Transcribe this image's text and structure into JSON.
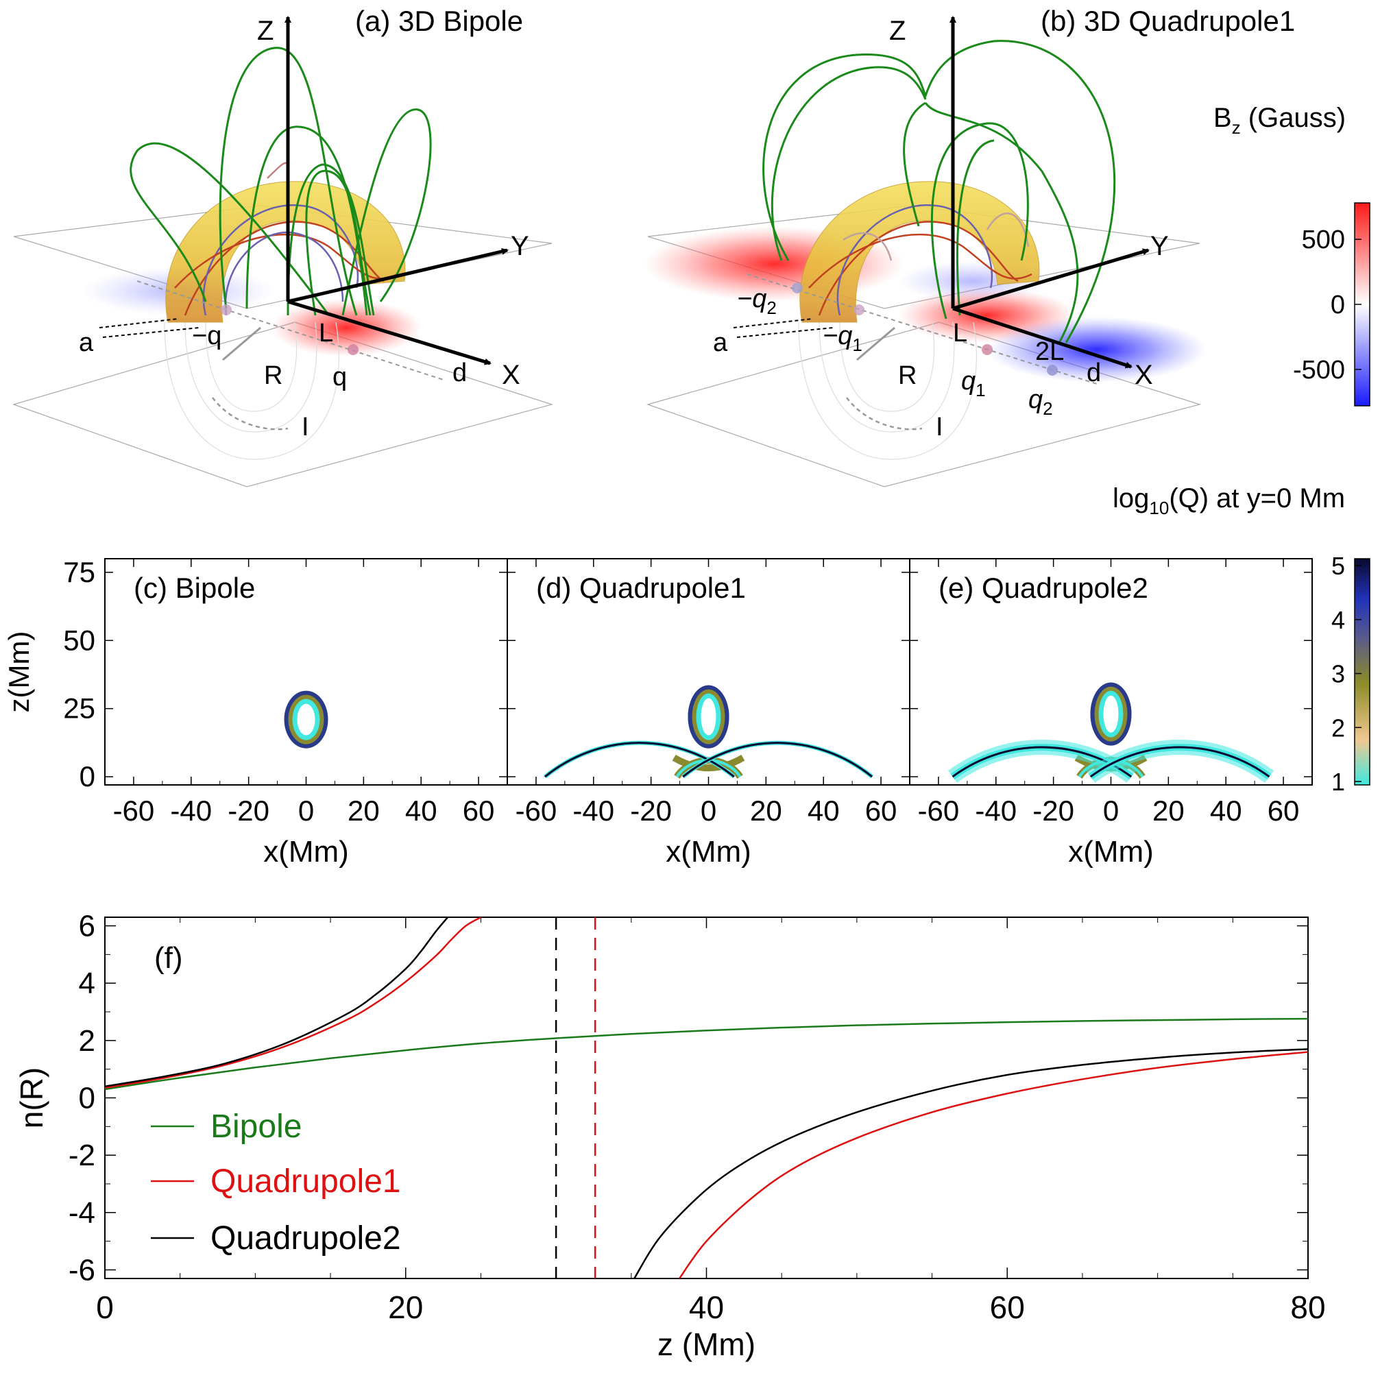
{
  "panel_a": {
    "title": "(a) 3D Bipole",
    "labels": {
      "z": "Z",
      "y": "Y",
      "x": "X",
      "a": "a",
      "minus_q": "−q",
      "L": "L",
      "R": "R",
      "q": "q",
      "d": "d",
      "I": "I"
    }
  },
  "panel_b": {
    "title": "(b) 3D Quadrupole1",
    "labels": {
      "z": "Z",
      "y": "Y",
      "x": "X",
      "a": "a",
      "minus_q2": "−q",
      "minus_q2_sub": "2",
      "minus_q1": "−q",
      "minus_q1_sub": "1",
      "L": "L",
      "two_L": "2L",
      "R": "R",
      "q1": "q",
      "q1_sub": "1",
      "q2": "q",
      "q2_sub": "2",
      "d": "d",
      "I": "I"
    }
  },
  "bz_colorbar": {
    "title_main": "B",
    "title_sub": "z",
    "title_rest": " (Gauss)",
    "ticks": [
      "500",
      "0",
      "-500"
    ],
    "tick_values": [
      500,
      0,
      -500
    ],
    "range": [
      -780,
      780
    ],
    "colors": {
      "low": "#1a1aff",
      "mid": "#ffffff",
      "high": "#ff1a1a"
    }
  },
  "q_colorbar": {
    "title_main": "log",
    "title_sub": "10",
    "title_rest": "(Q) at y=0 Mm",
    "ticks": [
      "5",
      "4",
      "3",
      "2",
      "1"
    ],
    "tick_values": [
      5,
      4,
      3,
      2,
      1
    ],
    "range": [
      1,
      5
    ],
    "colors": [
      "#40e8e0",
      "#f0c890",
      "#8c8c28",
      "#5a5a8c",
      "#2233bb",
      "#0a0a30"
    ]
  },
  "q_panels": {
    "ylabel": "z(Mm)",
    "xlabel": "x(Mm)",
    "yticks": [
      "75",
      "50",
      "25",
      "0"
    ],
    "ytick_values": [
      75,
      50,
      25,
      0
    ],
    "xticks": [
      "-60",
      "-40",
      "-20",
      "0",
      "20",
      "40",
      "60"
    ],
    "xtick_values": [
      -60,
      -40,
      -20,
      0,
      20,
      40,
      60
    ],
    "xlim": [
      -70,
      70
    ],
    "ylim": [
      -3,
      80
    ],
    "titles": [
      "(c) Bipole",
      "(d) Quadrupole1",
      "(e) Quadrupole2"
    ]
  },
  "chart_data": {
    "type": "line",
    "panel_label": "(f)",
    "xlabel": "z (Mm)",
    "ylabel": "n(R)",
    "xlim": [
      0,
      80
    ],
    "ylim": [
      -6.3,
      6.3
    ],
    "xticks": [
      0,
      20,
      40,
      60,
      80
    ],
    "yticks": [
      6,
      4,
      2,
      0,
      -2,
      -4,
      -6
    ],
    "legend_position": "lower-left",
    "series": [
      {
        "name": "Bipole",
        "color": "#1a7a1a",
        "x": [
          0,
          5,
          10,
          15,
          20,
          25,
          30,
          35,
          40,
          45,
          50,
          55,
          60,
          65,
          70,
          75,
          80
        ],
        "y": [
          0.3,
          0.7,
          1.06,
          1.38,
          1.66,
          1.9,
          2.08,
          2.23,
          2.35,
          2.45,
          2.53,
          2.59,
          2.64,
          2.68,
          2.71,
          2.74,
          2.76
        ]
      },
      {
        "name": "Quadrupole1",
        "color": "#dd1111",
        "x": [
          0,
          4,
          8,
          12,
          16,
          18,
          20,
          22,
          23,
          24,
          25,
          38.2,
          40,
          43,
          46,
          50,
          55,
          60,
          65,
          70,
          75,
          80
        ],
        "y": [
          0.35,
          0.7,
          1.15,
          1.8,
          2.7,
          3.3,
          4.05,
          4.95,
          5.5,
          6.0,
          6.3,
          -6.3,
          -5.0,
          -3.5,
          -2.4,
          -1.4,
          -0.5,
          0.15,
          0.65,
          1.05,
          1.35,
          1.6
        ]
      },
      {
        "name": "Quadrupole2",
        "color": "#000000",
        "x": [
          0,
          4,
          8,
          12,
          16,
          18,
          20,
          21,
          22,
          22.8,
          35.2,
          37,
          40,
          43,
          46,
          50,
          55,
          60,
          65,
          70,
          75,
          80
        ],
        "y": [
          0.4,
          0.75,
          1.2,
          1.9,
          2.9,
          3.6,
          4.5,
          5.1,
          5.8,
          6.3,
          -6.3,
          -4.8,
          -3.2,
          -2.1,
          -1.3,
          -0.5,
          0.25,
          0.8,
          1.15,
          1.4,
          1.58,
          1.7
        ]
      }
    ],
    "vlines": [
      {
        "x": 30,
        "color": "#000000"
      },
      {
        "x": 32.6,
        "color": "#dd1111"
      }
    ]
  }
}
